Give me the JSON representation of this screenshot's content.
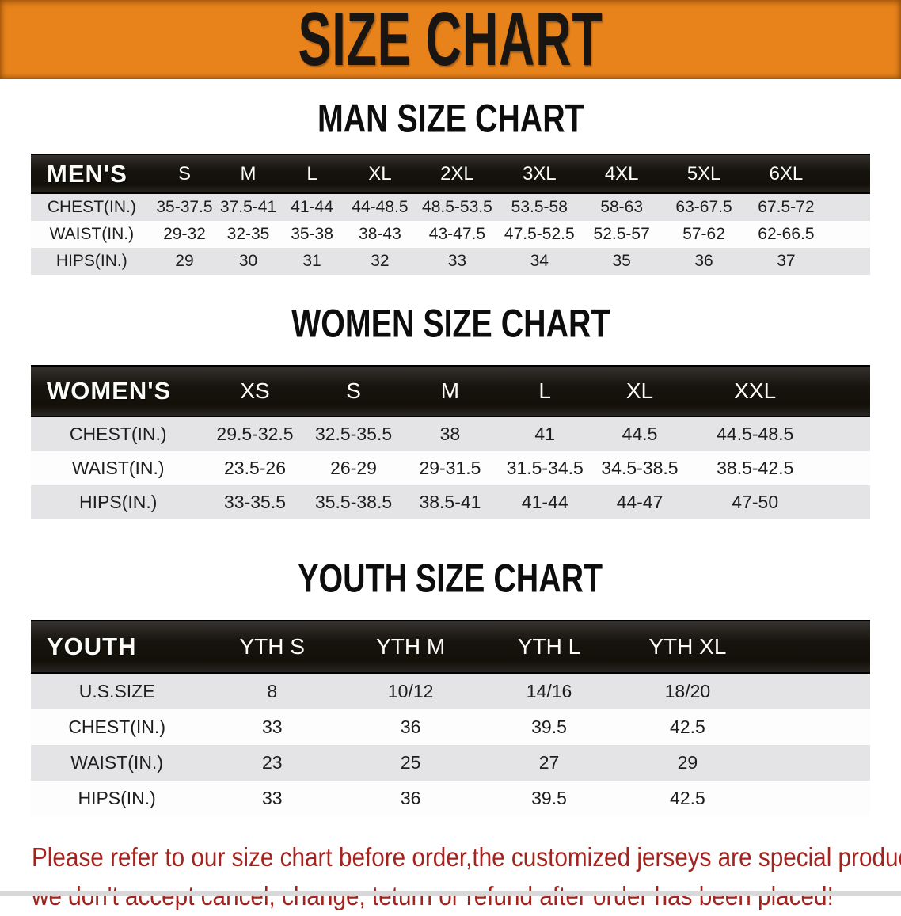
{
  "banner": {
    "title": "SIZE CHART",
    "bg_color": "#E8831C",
    "text_color": "#181512"
  },
  "sections": [
    {
      "heading": "MAN SIZE CHART",
      "label": "MEN'S",
      "columns": [
        "S",
        "M",
        "L",
        "XL",
        "2XL",
        "3XL",
        "4XL",
        "5XL",
        "6XL"
      ],
      "rows": [
        {
          "label": "CHEST(IN.)",
          "values": [
            "35-37.5",
            "37.5-41",
            "41-44",
            "44-48.5",
            "48.5-53.5",
            "53.5-58",
            "58-63",
            "63-67.5",
            "67.5-72"
          ]
        },
        {
          "label": "WAIST(IN.)",
          "values": [
            "29-32",
            "32-35",
            "35-38",
            "38-43",
            "43-47.5",
            "47.5-52.5",
            "52.5-57",
            "57-62",
            "62-66.5"
          ]
        },
        {
          "label": "HIPS(IN.)",
          "values": [
            "29",
            "30",
            "31",
            "32",
            "33",
            "34",
            "35",
            "36",
            "37"
          ]
        }
      ]
    },
    {
      "heading": "WOMEN SIZE CHART",
      "label": "WOMEN'S",
      "columns": [
        "XS",
        "S",
        "M",
        "L",
        "XL",
        "XXL"
      ],
      "rows": [
        {
          "label": "CHEST(IN.)",
          "values": [
            "29.5-32.5",
            "32.5-35.5",
            "38",
            "41",
            "44.5",
            "44.5-48.5"
          ]
        },
        {
          "label": "WAIST(IN.)",
          "values": [
            "23.5-26",
            "26-29",
            "29-31.5",
            "31.5-34.5",
            "34.5-38.5",
            "38.5-42.5"
          ]
        },
        {
          "label": "HIPS(IN.)",
          "values": [
            "33-35.5",
            "35.5-38.5",
            "38.5-41",
            "41-44",
            "44-47",
            "47-50"
          ]
        }
      ]
    },
    {
      "heading": "YOUTH SIZE CHART",
      "label": "YOUTH",
      "columns": [
        "YTH S",
        "YTH M",
        "YTH L",
        "YTH XL"
      ],
      "rows": [
        {
          "label": "U.S.SIZE",
          "values": [
            "8",
            "10/12",
            "14/16",
            "18/20"
          ]
        },
        {
          "label": "CHEST(IN.)",
          "values": [
            "33",
            "36",
            "39.5",
            "42.5"
          ]
        },
        {
          "label": "WAIST(IN.)",
          "values": [
            "23",
            "25",
            "27",
            "29"
          ]
        },
        {
          "label": "HIPS(IN.)",
          "values": [
            "33",
            "36",
            "39.5",
            "42.5"
          ]
        }
      ]
    }
  ],
  "footer": {
    "line1": "Please refer to our size chart before order,the customized jerseys are special products,",
    "line2": "we don't accept cancel, change, teturn or refund after order has been placed!",
    "text_color": "#A3231E"
  },
  "colors": {
    "banner_orange": "#E8831C",
    "table_header_black": "#17140F",
    "row_stripe_gray": "#E4E4E6",
    "disclaimer_red": "#A3231E"
  }
}
